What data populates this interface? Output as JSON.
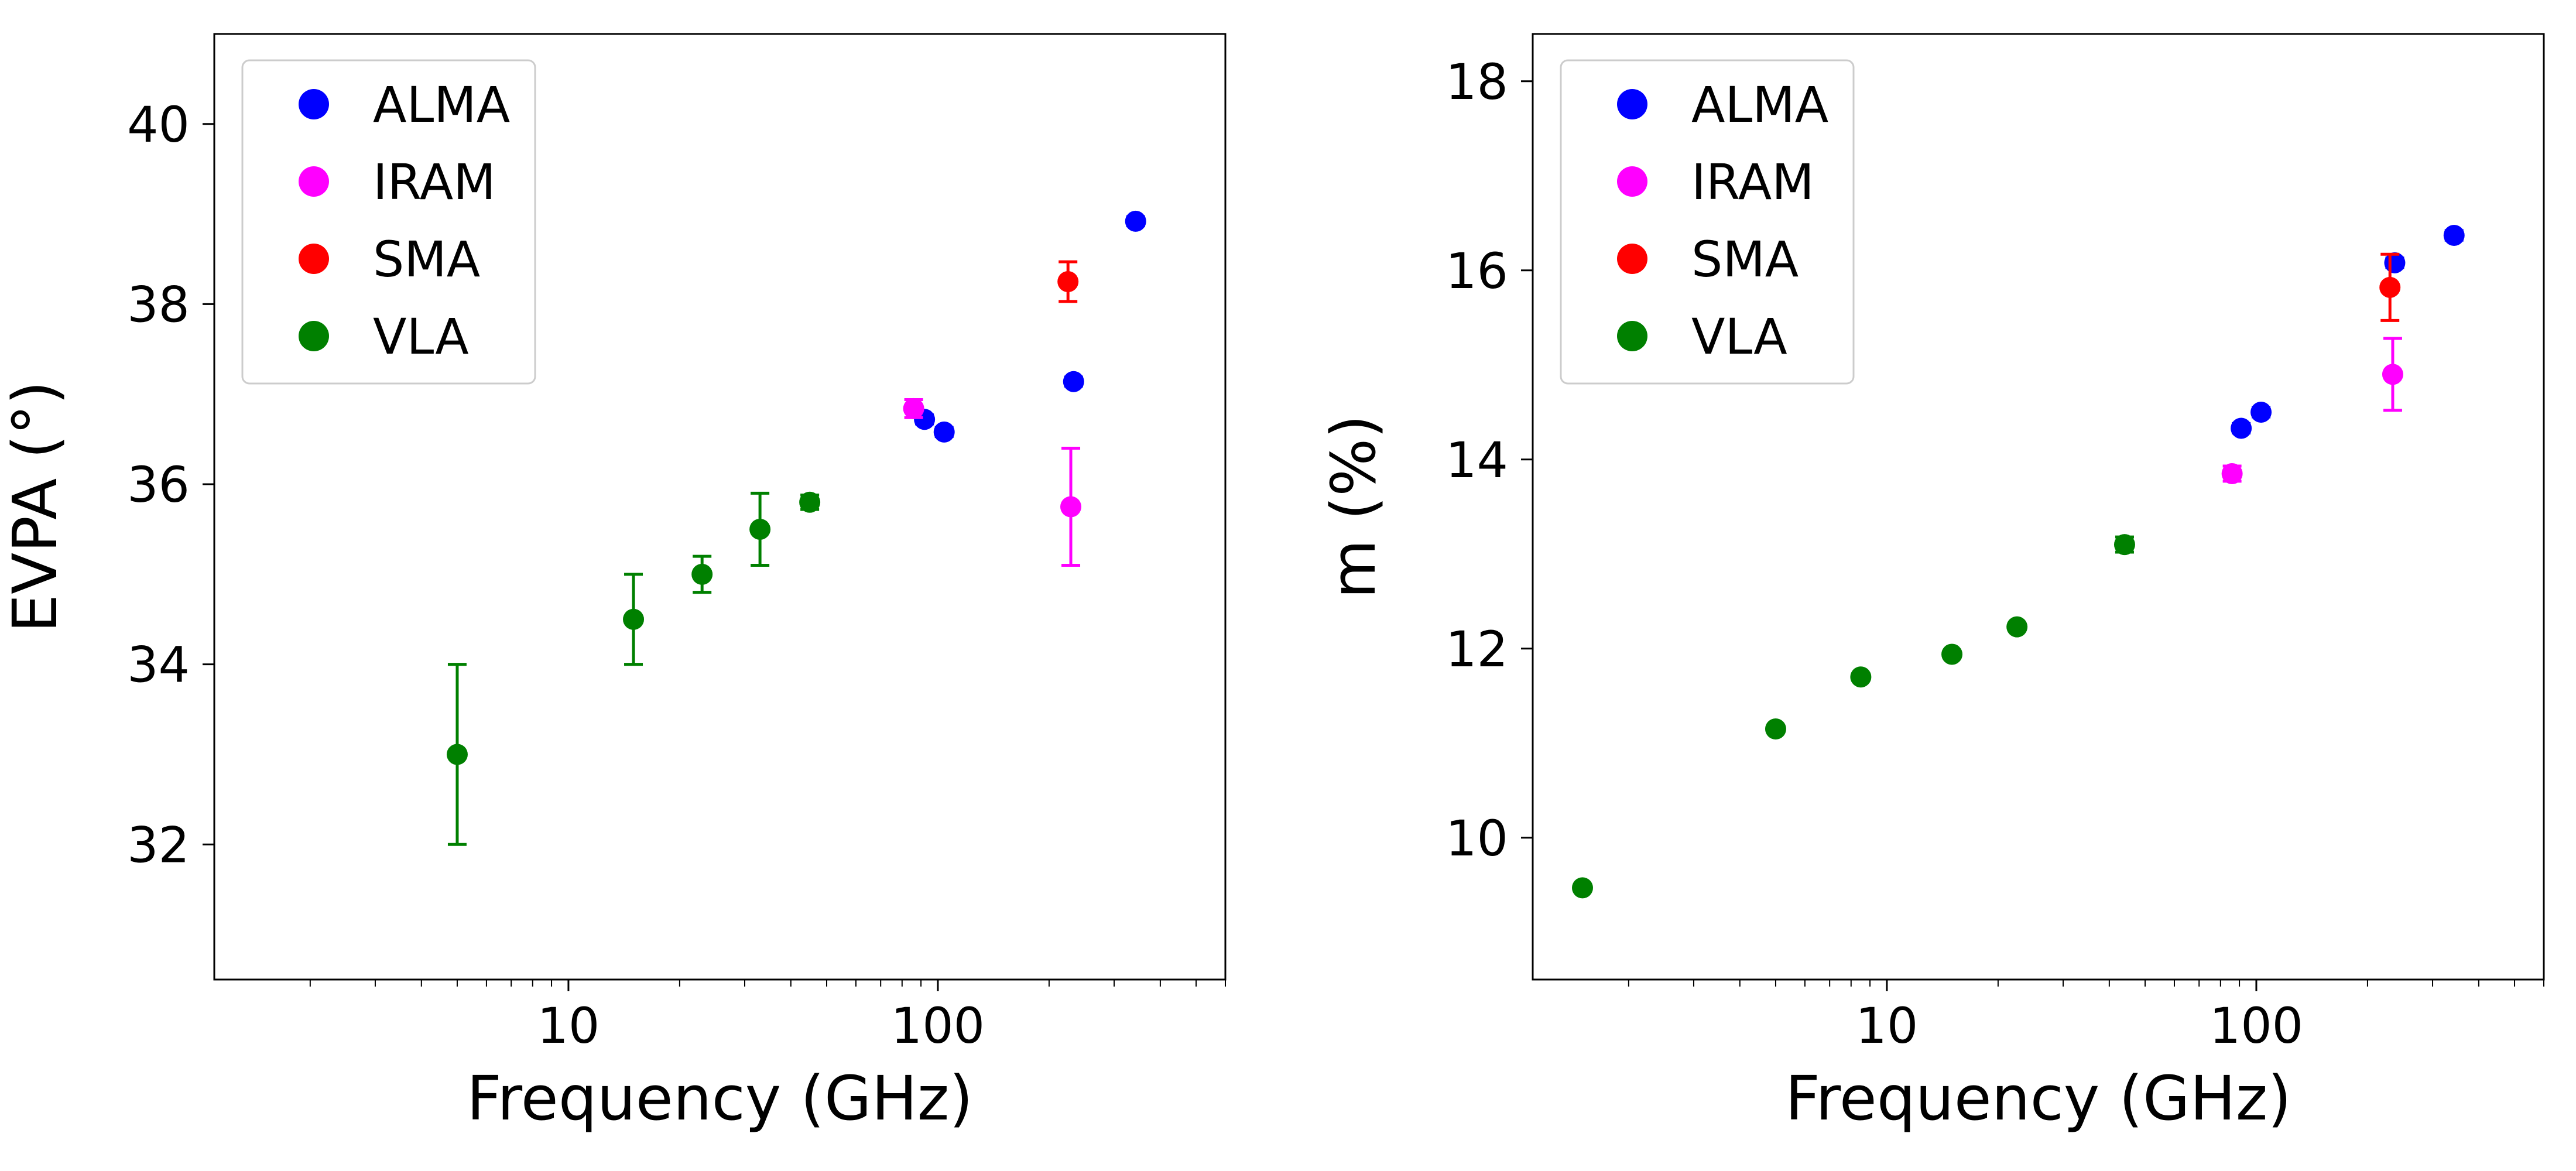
{
  "chart_data": [
    {
      "type": "scatter",
      "id": "evpa",
      "xlabel": "Frequency (GHz)",
      "ylabel": "EVPA (°)",
      "xscale": "log",
      "xlim": [
        1.1,
        600
      ],
      "ylim": [
        30.5,
        41
      ],
      "xticks": [
        10,
        100
      ],
      "xtick_labels": [
        "10",
        "100"
      ],
      "yticks": [
        32,
        34,
        36,
        38,
        40
      ],
      "ytick_labels": [
        "32",
        "34",
        "36",
        "38",
        "40"
      ],
      "legend_position": "top-left",
      "series": [
        {
          "name": "ALMA",
          "color": "#0000ff",
          "points": [
            {
              "x": 92,
              "y": 36.72,
              "err": 0.05
            },
            {
              "x": 104,
              "y": 36.58,
              "err": 0.05
            },
            {
              "x": 233,
              "y": 37.14,
              "err": 0.05
            },
            {
              "x": 343,
              "y": 38.92,
              "err": 0.05
            }
          ]
        },
        {
          "name": "IRAM",
          "color": "#ff00ff",
          "points": [
            {
              "x": 86,
              "y": 36.84,
              "err": 0.1
            },
            {
              "x": 229,
              "y": 35.75,
              "err": 0.65
            }
          ]
        },
        {
          "name": "SMA",
          "color": "#ff0000",
          "points": [
            {
              "x": 225,
              "y": 38.25,
              "err": 0.22
            }
          ]
        },
        {
          "name": "VLA",
          "color": "#008000",
          "points": [
            {
              "x": 5,
              "y": 33.0,
              "err": 1.0
            },
            {
              "x": 15,
              "y": 34.5,
              "err": 0.5
            },
            {
              "x": 23,
              "y": 35.0,
              "err": 0.2
            },
            {
              "x": 33,
              "y": 35.5,
              "err": 0.4
            },
            {
              "x": 45,
              "y": 35.8,
              "err": 0.08
            }
          ]
        }
      ]
    },
    {
      "type": "scatter",
      "id": "polfrac",
      "xlabel": "Frequency (GHz)",
      "ylabel": "m (%)",
      "xscale": "log",
      "xlim": [
        1.1,
        600
      ],
      "ylim": [
        8.5,
        18.5
      ],
      "xticks": [
        10,
        100
      ],
      "xtick_labels": [
        "10",
        "100"
      ],
      "yticks": [
        10,
        12,
        14,
        16,
        18
      ],
      "ytick_labels": [
        "10",
        "12",
        "14",
        "16",
        "18"
      ],
      "legend_position": "top-left",
      "series": [
        {
          "name": "ALMA",
          "color": "#0000ff",
          "points": [
            {
              "x": 91,
              "y": 14.33,
              "err": 0.05
            },
            {
              "x": 103,
              "y": 14.5,
              "err": 0.05
            },
            {
              "x": 237,
              "y": 16.08,
              "err": 0.05
            },
            {
              "x": 343,
              "y": 16.37,
              "err": 0.05
            }
          ]
        },
        {
          "name": "IRAM",
          "color": "#ff00ff",
          "points": [
            {
              "x": 86,
              "y": 13.85,
              "err": 0.08
            },
            {
              "x": 234,
              "y": 14.9,
              "err": 0.38
            }
          ]
        },
        {
          "name": "SMA",
          "color": "#ff0000",
          "points": [
            {
              "x": 230,
              "y": 15.82,
              "err": 0.35
            }
          ]
        },
        {
          "name": "VLA",
          "color": "#008000",
          "points": [
            {
              "x": 1.5,
              "y": 9.47,
              "err": 0.03
            },
            {
              "x": 5,
              "y": 11.15,
              "err": 0.03
            },
            {
              "x": 8.5,
              "y": 11.7,
              "err": 0.03
            },
            {
              "x": 15,
              "y": 11.94,
              "err": 0.03
            },
            {
              "x": 22.5,
              "y": 12.23,
              "err": 0.03
            },
            {
              "x": 44,
              "y": 13.1,
              "err": 0.08
            }
          ]
        }
      ]
    }
  ]
}
